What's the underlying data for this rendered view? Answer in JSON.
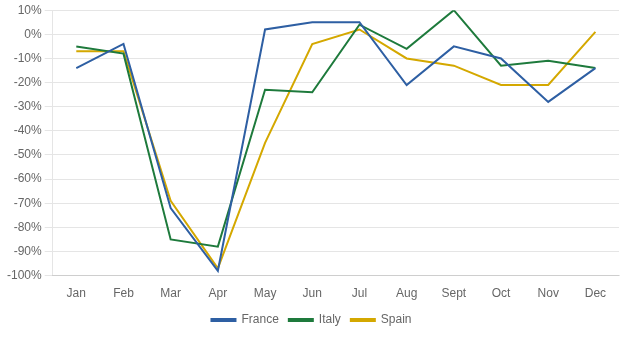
{
  "chart_data": {
    "type": "line",
    "categories": [
      "Jan",
      "Feb",
      "Mar",
      "Apr",
      "May",
      "Jun",
      "Jul",
      "Aug",
      "Sept",
      "Oct",
      "Nov",
      "Dec"
    ],
    "series": [
      {
        "name": "France",
        "color": "#2E5FA3",
        "values": [
          -14,
          -4,
          -72,
          -98,
          2,
          5,
          5,
          -21,
          -5,
          -10,
          -28,
          -14
        ]
      },
      {
        "name": "Italy",
        "color": "#1E7A3C",
        "values": [
          -5,
          -8,
          -85,
          -88,
          -23,
          -24,
          4,
          -6,
          10,
          -13,
          -11,
          -14
        ]
      },
      {
        "name": "Spain",
        "color": "#D4A800",
        "values": [
          -7,
          -7,
          -69,
          -97,
          -45,
          -4,
          2,
          -10,
          -13,
          -21,
          -21,
          1
        ]
      }
    ],
    "ylim": [
      -100,
      10
    ],
    "yticks": [
      {
        "value": -100,
        "label": "-100%"
      },
      {
        "value": -90,
        "label": "-90%"
      },
      {
        "value": -80,
        "label": "-80%"
      },
      {
        "value": -70,
        "label": "-70%"
      },
      {
        "value": -60,
        "label": "-60%"
      },
      {
        "value": -50,
        "label": "-50%"
      },
      {
        "value": -40,
        "label": "-40%"
      },
      {
        "value": -30,
        "label": "-30%"
      },
      {
        "value": -20,
        "label": "-20%"
      },
      {
        "value": -10,
        "label": "-10%"
      },
      {
        "value": 0,
        "label": "0%"
      },
      {
        "value": 10,
        "label": "10%"
      }
    ],
    "grid": "y",
    "legend": "bottom",
    "marker": "none"
  }
}
